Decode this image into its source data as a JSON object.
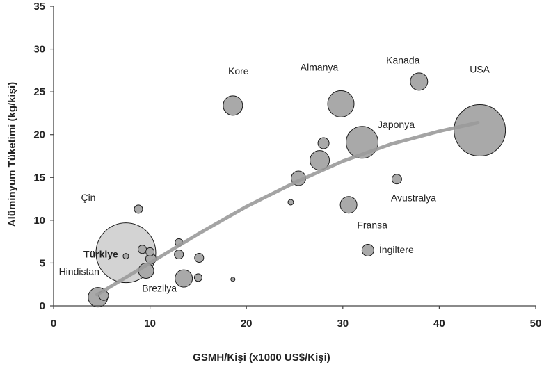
{
  "chart_data": {
    "type": "scatter",
    "title": "",
    "xlabel": "GSMH/Kişi (x1000 US$/Kişi)",
    "ylabel": "Alüminyum Tüketimi (kg/kişi)",
    "xlim": [
      0,
      50
    ],
    "ylim": [
      0,
      35
    ],
    "xticks": [
      0,
      10,
      20,
      30,
      40,
      50
    ],
    "yticks": [
      0,
      5,
      10,
      15,
      20,
      25,
      30,
      35
    ],
    "grid": false,
    "bubble_color": "#a9a9a9",
    "highlight_color": "#d3d3d3",
    "trend_color": "#9a9a9a",
    "points": [
      {
        "label": "USA",
        "x": 44.2,
        "y": 20.5,
        "size": 37
      },
      {
        "label": "Kanada",
        "x": 37.9,
        "y": 26.2,
        "size": 12.5
      },
      {
        "label": "Almanya",
        "x": 29.8,
        "y": 23.6,
        "size": 19
      },
      {
        "label": "Kore",
        "x": 18.6,
        "y": 23.4,
        "size": 14
      },
      {
        "label": "Japonya",
        "x": 32.0,
        "y": 19.1,
        "size": 23
      },
      {
        "label": "",
        "x": 28.0,
        "y": 19.0,
        "size": 8
      },
      {
        "label": "",
        "x": 27.6,
        "y": 17.0,
        "size": 14
      },
      {
        "label": "",
        "x": 25.4,
        "y": 14.9,
        "size": 10.5
      },
      {
        "label": "Avustralya",
        "x": 35.6,
        "y": 14.8,
        "size": 7
      },
      {
        "label": "",
        "x": 24.6,
        "y": 12.1,
        "size": 4
      },
      {
        "label": "Fransa",
        "x": 30.6,
        "y": 11.8,
        "size": 12
      },
      {
        "label": "İngiltere",
        "x": 32.6,
        "y": 6.5,
        "size": 8.5
      },
      {
        "label": "Çin",
        "x": 8.8,
        "y": 11.3,
        "size": 6
      },
      {
        "label": "Türkiye",
        "x": 7.5,
        "y": 6.2,
        "size": 43
      },
      {
        "label": "",
        "x": 7.5,
        "y": 5.8,
        "size": 4
      },
      {
        "label": "",
        "x": 9.2,
        "y": 6.6,
        "size": 6
      },
      {
        "label": "",
        "x": 10.0,
        "y": 6.3,
        "size": 6
      },
      {
        "label": "",
        "x": 10.1,
        "y": 5.5,
        "size": 7.5
      },
      {
        "label": "",
        "x": 9.6,
        "y": 4.1,
        "size": 11
      },
      {
        "label": "",
        "x": 13.0,
        "y": 7.4,
        "size": 5.5
      },
      {
        "label": "",
        "x": 13.0,
        "y": 6.0,
        "size": 6.5
      },
      {
        "label": "",
        "x": 15.1,
        "y": 5.6,
        "size": 6.5
      },
      {
        "label": "Brezilya",
        "x": 13.5,
        "y": 3.2,
        "size": 12.5
      },
      {
        "label": "",
        "x": 15.0,
        "y": 3.3,
        "size": 5.5
      },
      {
        "label": "",
        "x": 18.6,
        "y": 3.1,
        "size": 3
      },
      {
        "label": "Hindistan",
        "x": 4.6,
        "y": 1.0,
        "size": 14
      },
      {
        "label": "",
        "x": 5.2,
        "y": 1.2,
        "size": 7
      }
    ],
    "trend": [
      {
        "x": 4.5,
        "y": 1.3
      },
      {
        "x": 10,
        "y": 5.0
      },
      {
        "x": 15,
        "y": 8.4
      },
      {
        "x": 20,
        "y": 11.6
      },
      {
        "x": 25,
        "y": 14.4
      },
      {
        "x": 30,
        "y": 16.9
      },
      {
        "x": 35,
        "y": 18.9
      },
      {
        "x": 40,
        "y": 20.4
      },
      {
        "x": 44,
        "y": 21.4
      }
    ]
  }
}
